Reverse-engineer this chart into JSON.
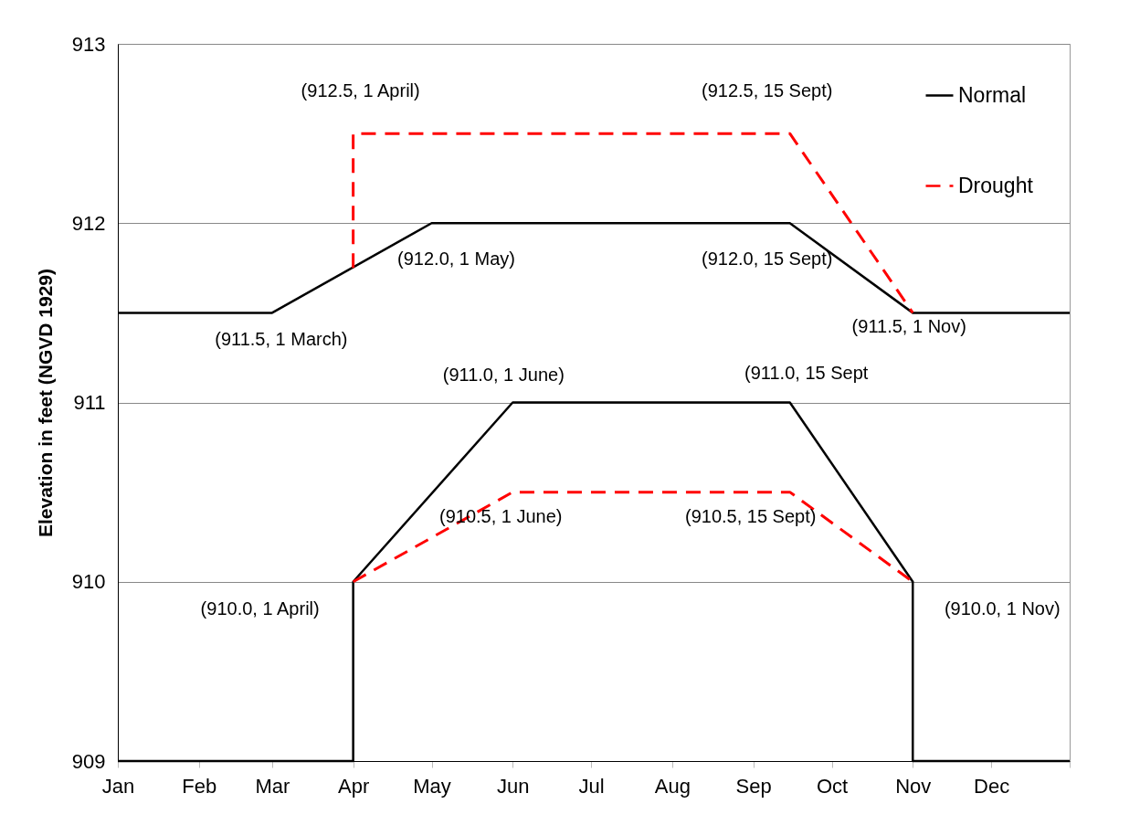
{
  "chart_data": {
    "type": "line",
    "ylabel": "Elevation in feet (NGVD 1929)",
    "xlim": [
      "--01-01",
      "--12-31"
    ],
    "xticks": [
      {
        "value": "--01-01",
        "label": "Jan"
      },
      {
        "value": "--02-01",
        "label": "Feb"
      },
      {
        "value": "--03-01",
        "label": "Mar"
      },
      {
        "value": "--04-01",
        "label": "Apr"
      },
      {
        "value": "--05-01",
        "label": "May"
      },
      {
        "value": "--06-01",
        "label": "Jun"
      },
      {
        "value": "--07-01",
        "label": "Jul"
      },
      {
        "value": "--08-01",
        "label": "Aug"
      },
      {
        "value": "--09-01",
        "label": "Sep"
      },
      {
        "value": "--10-01",
        "label": "Oct"
      },
      {
        "value": "--11-01",
        "label": "Nov"
      },
      {
        "value": "--12-01",
        "label": "Dec"
      },
      {
        "value": "--12-31",
        "label": null
      }
    ],
    "ylim": [
      909,
      913
    ],
    "yticks": [
      909,
      910,
      911,
      912,
      913
    ],
    "grid": "y",
    "legend": "top right",
    "marker": "none",
    "series": [
      {
        "name": "Normal",
        "color": "#000000",
        "line_style": "solid",
        "x": [
          "--01-01",
          "--03-01",
          "--05-01",
          "--09-15",
          "--11-01",
          "--12-31"
        ],
        "values": [
          911.5,
          911.5,
          912.0,
          912.0,
          911.5,
          911.5
        ]
      },
      {
        "color": "#000000",
        "line_style": "solid",
        "x": [
          "--01-01",
          "--04-01",
          "--04-01",
          "--06-01",
          "--09-15",
          "--11-01",
          "--11-01",
          "--12-31"
        ],
        "values": [
          909,
          909,
          910,
          911,
          911,
          910,
          909,
          909
        ]
      },
      {
        "name": "Drought",
        "color": "#ff0000",
        "line_style": "dashed",
        "x": [
          "--04-01",
          "--04-01",
          "--09-15",
          "--11-01"
        ],
        "values": [
          911.75,
          912.5,
          912.5,
          911.5
        ]
      },
      {
        "color": "#ff0000",
        "line_style": "dashed",
        "x": [
          "--04-01",
          "--06-01",
          "--09-15",
          "--11-01"
        ],
        "values": [
          910,
          910.5,
          910.5,
          910
        ]
      }
    ],
    "annotations": [
      {
        "text": "(912.5, 1 April)",
        "x": "--04-01",
        "y": 912.5
      },
      {
        "text": "(912.5, 15 Sept)",
        "x": "--09-15",
        "y": 912.5
      },
      {
        "text": "(912.0, 1 May)",
        "x": "--05-01",
        "y": 912.0
      },
      {
        "text": "(912.0, 15 Sept)",
        "x": "--09-15",
        "y": 912.0
      },
      {
        "text": "(911.5, 1 March)",
        "x": "--03-01",
        "y": 911.5
      },
      {
        "text": "(911.5, 1 Nov)",
        "x": "--11-01",
        "y": 911.5
      },
      {
        "text": "(911.0, 1 June)",
        "x": "--06-01",
        "y": 911.0
      },
      {
        "text": "(911.0, 15 Sept",
        "x": "--09-15",
        "y": 911.0
      },
      {
        "text": "(910.5, 1 June)",
        "x": "--06-01",
        "y": 910.5
      },
      {
        "text": "(910.5, 15 Sept)",
        "x": "--09-15",
        "y": 910.5
      },
      {
        "text": "(910.0, 1 April)",
        "x": "--04-01",
        "y": 910.0
      },
      {
        "text": "(910.0, 1 Nov)",
        "x": "--11-01",
        "y": 910.0
      }
    ]
  }
}
